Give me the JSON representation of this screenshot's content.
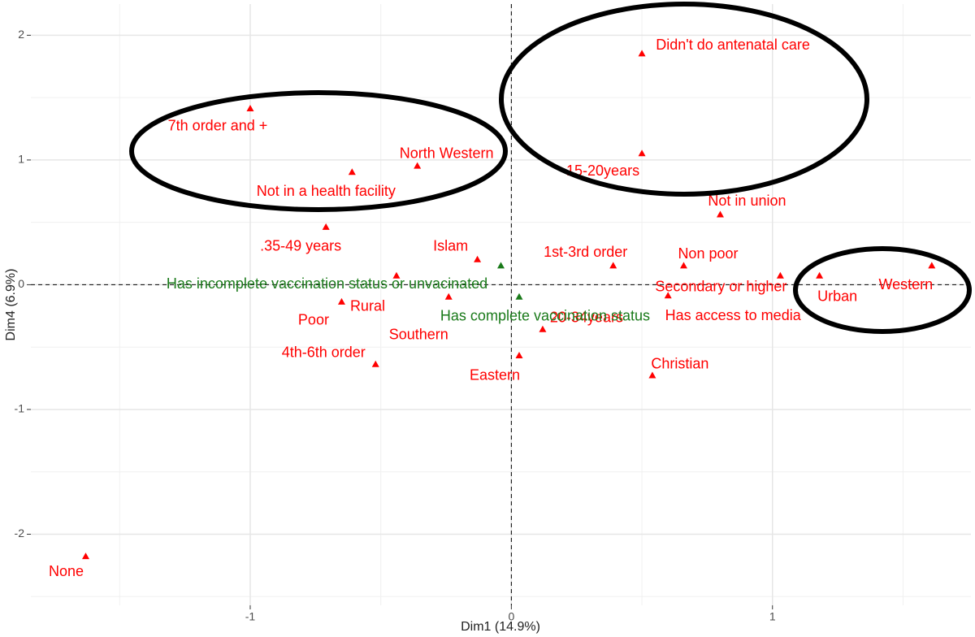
{
  "chart_data": {
    "type": "scatter",
    "xlabel": "Dim1 (14.9%)",
    "ylabel": "Dim4 (6.9%)",
    "xlim": [
      -1.84,
      1.76
    ],
    "ylim": [
      -2.57,
      2.25
    ],
    "xticks": [
      -1,
      0,
      1
    ],
    "yticks": [
      -2,
      -1,
      0,
      1,
      2
    ],
    "grid": true,
    "series": [
      {
        "color": "#ff0000",
        "labels": [
          "Didn't do antenatal care",
          "15-20years",
          "Not in union",
          "7th order and +",
          "North Western",
          "Not in a health facility",
          ".35-49 years",
          "Islam",
          "1st-3rd order",
          "Non poor",
          "Secondary or higher",
          "Urban",
          "Western",
          "Rural",
          "Poor",
          "Southern",
          "4th-6th order",
          "Eastern",
          "Christian",
          "None",
          "20-34years",
          "Has access to media"
        ],
        "x": [
          0.5,
          0.5,
          0.8,
          -1.0,
          -0.36,
          -0.61,
          -0.71,
          -0.13,
          0.39,
          0.66,
          1.03,
          1.18,
          1.61,
          -0.65,
          -0.44,
          -0.24,
          -0.52,
          0.03,
          0.54,
          -1.63,
          0.12,
          0.6
        ],
        "y": [
          1.85,
          1.05,
          0.56,
          1.41,
          0.95,
          0.9,
          0.46,
          0.2,
          0.15,
          0.15,
          0.07,
          0.07,
          0.15,
          -0.14,
          0.07,
          -0.1,
          -0.64,
          -0.57,
          -0.73,
          -2.18,
          -0.36,
          -0.09
        ]
      },
      {
        "color": "#1a7a1a",
        "labels": [
          "Has incomplete vaccination status or unvacinated",
          "Has complete vaccination status"
        ],
        "x": [
          -0.04,
          0.03
        ],
        "y": [
          0.15,
          -0.1
        ]
      }
    ]
  }
}
